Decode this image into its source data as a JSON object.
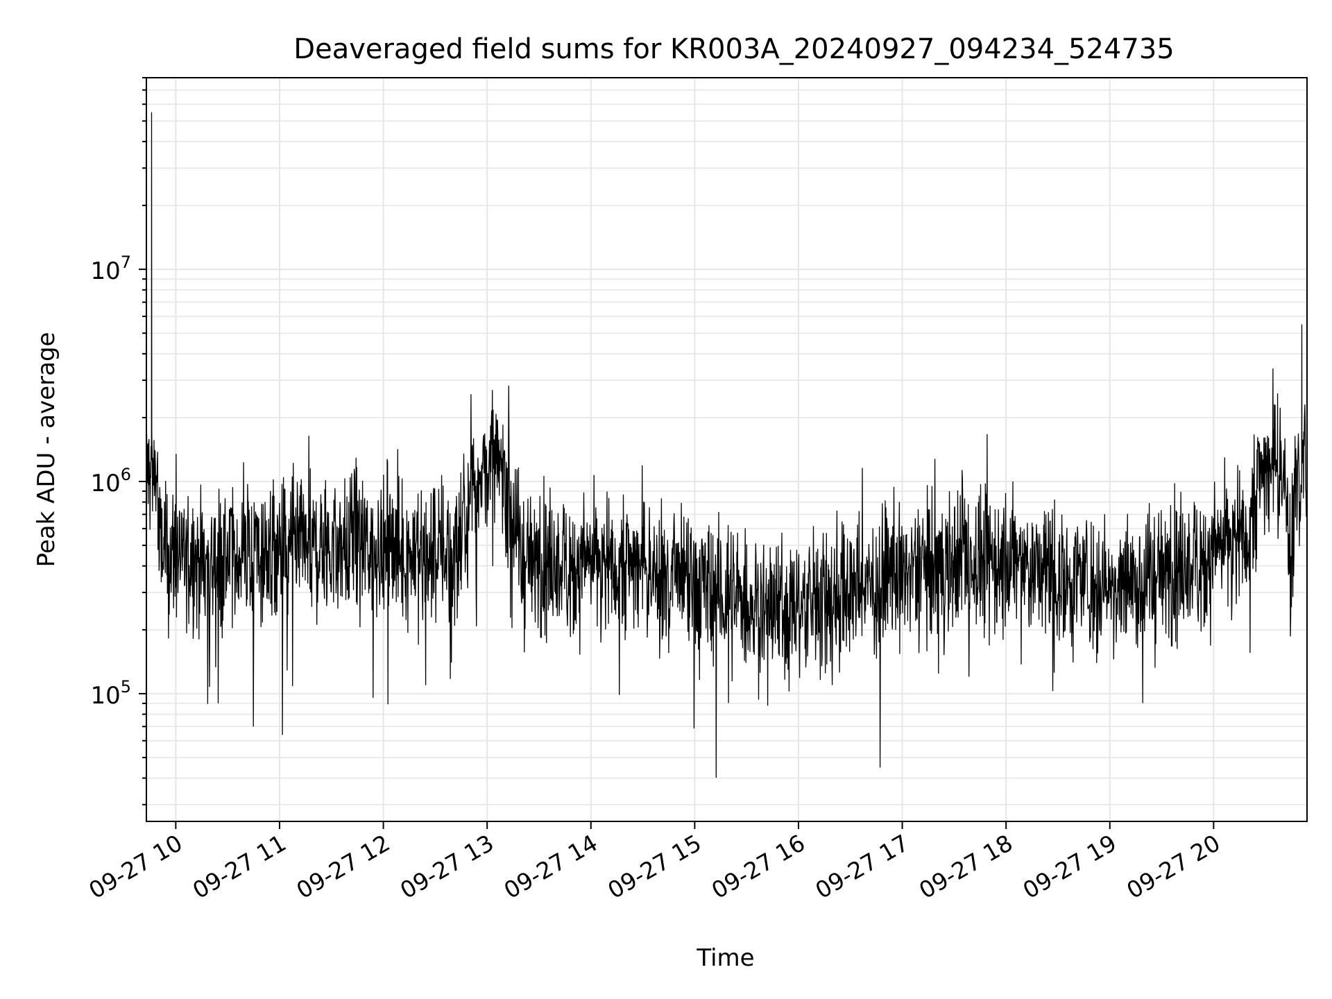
{
  "chart_data": {
    "type": "line",
    "title": "Deaveraged field sums for KR003A_20240927_094234_524735",
    "xlabel": "Time",
    "ylabel": "Peak ADU - average",
    "x_scale": "time",
    "y_scale": "log",
    "xlim": [
      "2024-09-27 09:43",
      "2024-09-27 20:54"
    ],
    "ylim": [
      25000,
      80000000
    ],
    "grid": true,
    "line_color": "#000000",
    "x_ticks": [
      "09-27 10",
      "09-27 11",
      "09-27 12",
      "09-27 13",
      "09-27 14",
      "09-27 15",
      "09-27 16",
      "09-27 17",
      "09-27 18",
      "09-27 19",
      "09-27 20"
    ],
    "y_ticks": [
      {
        "value": 100000,
        "base": "10",
        "exp": "5"
      },
      {
        "value": 1000000,
        "base": "10",
        "exp": "6"
      },
      {
        "value": 10000000,
        "base": "10",
        "exp": "7"
      }
    ],
    "series": [
      {
        "values_note_free": true,
        "x": [
          "2024-09-27 09:43",
          "2024-09-27 09:46",
          "2024-09-27 09:50",
          "2024-09-27 09:55",
          "2024-09-27 10:02",
          "2024-09-27 10:20",
          "2024-09-27 10:40",
          "2024-09-27 10:55",
          "2024-09-27 11:20",
          "2024-09-27 11:55",
          "2024-09-27 12:20",
          "2024-09-27 12:45",
          "2024-09-27 13:03",
          "2024-09-27 13:20",
          "2024-09-27 13:50",
          "2024-09-27 14:20",
          "2024-09-27 14:50",
          "2024-09-27 15:20",
          "2024-09-27 15:50",
          "2024-09-27 16:02",
          "2024-09-27 16:30",
          "2024-09-27 17:00",
          "2024-09-27 17:30",
          "2024-09-27 18:00",
          "2024-09-27 18:30",
          "2024-09-27 19:00",
          "2024-09-27 19:30",
          "2024-09-27 20:00",
          "2024-09-27 20:20",
          "2024-09-27 20:37",
          "2024-09-27 20:45",
          "2024-09-27 20:51",
          "2024-09-27 20:54"
        ],
        "y": [
          1000000,
          55000000,
          500000,
          450000,
          450000,
          420000,
          450000,
          450000,
          480000,
          500000,
          450000,
          480000,
          2700000,
          420000,
          400000,
          420000,
          340000,
          280000,
          250000,
          260000,
          300000,
          360000,
          420000,
          420000,
          360000,
          320000,
          360000,
          450000,
          600000,
          2600000,
          400000,
          5500000,
          500000
        ]
      }
    ]
  }
}
